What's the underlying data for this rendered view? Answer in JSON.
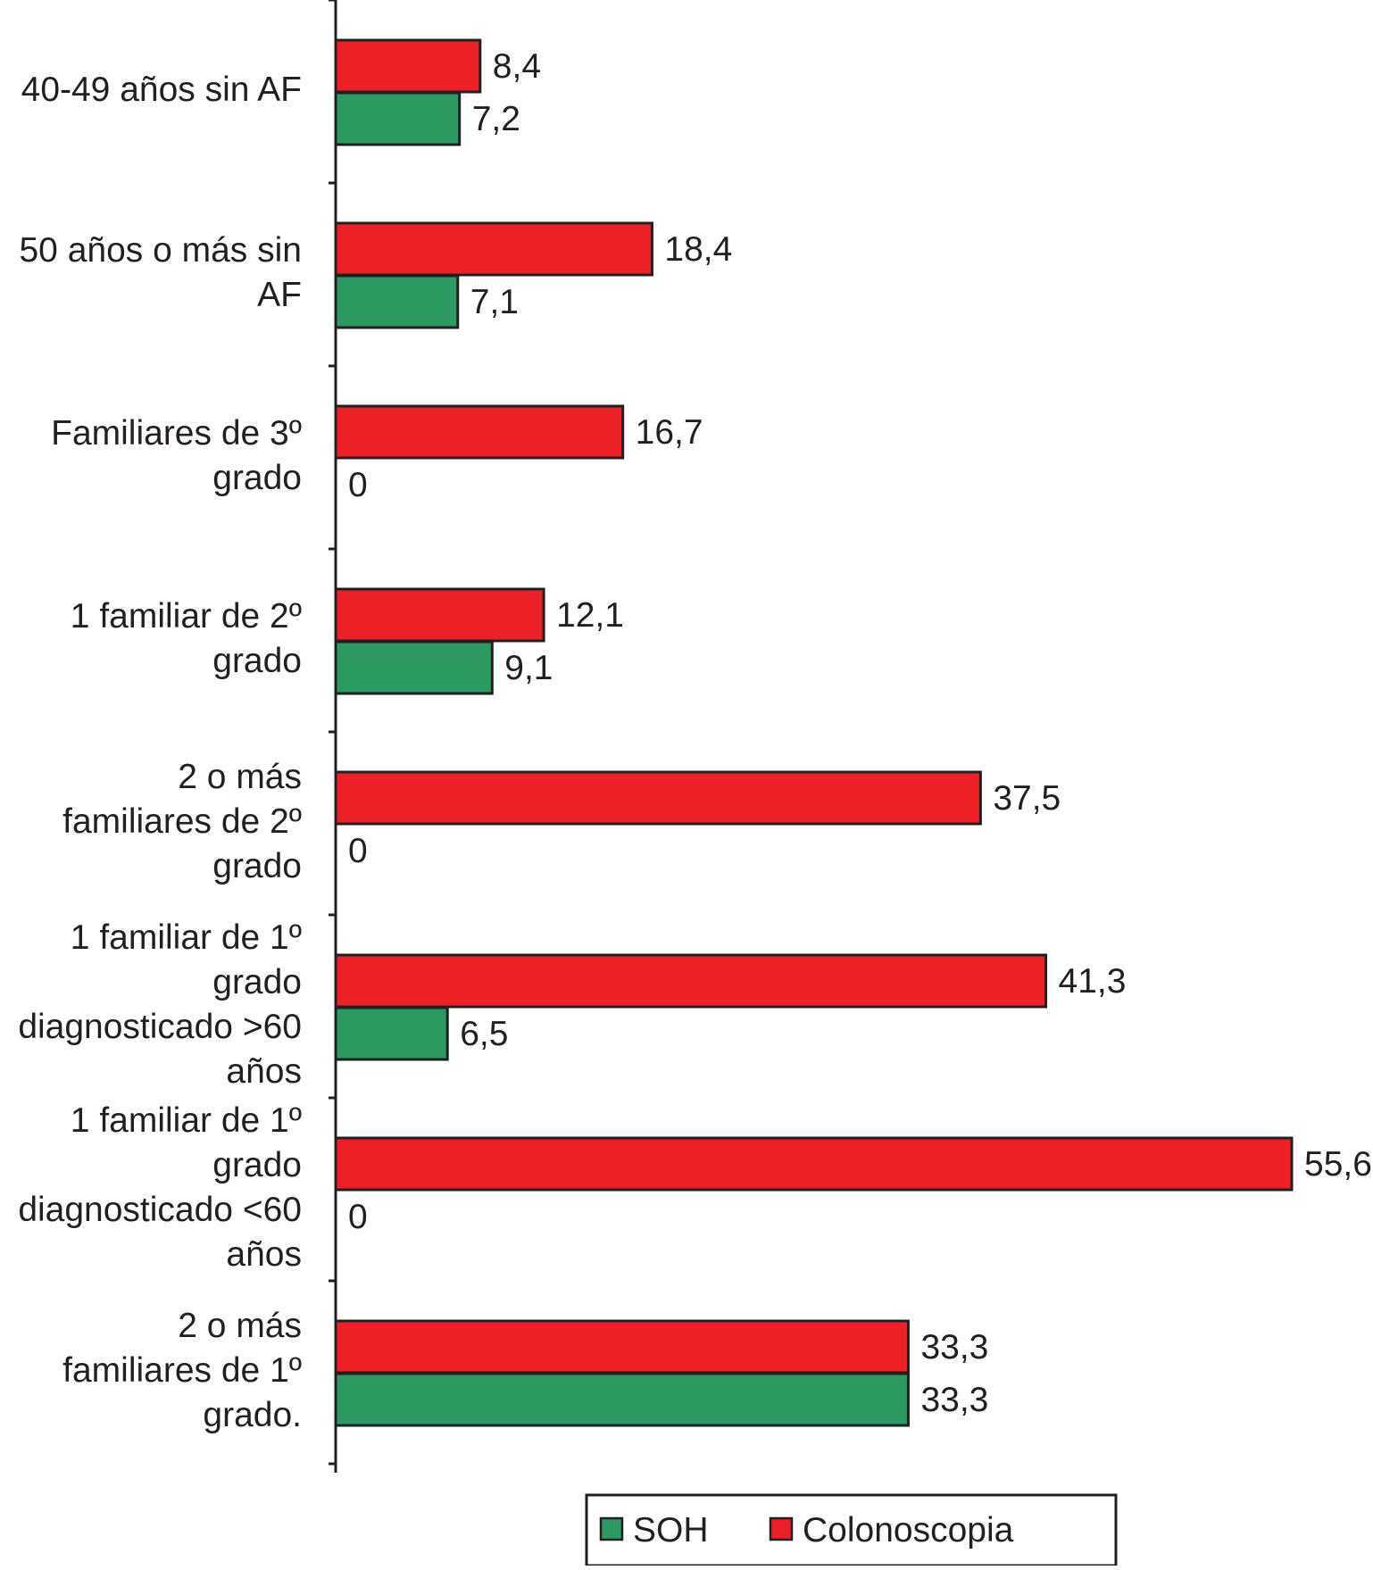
{
  "chart_data": {
    "type": "bar",
    "orientation": "horizontal",
    "title": "",
    "xlabel": "",
    "ylabel": "",
    "categories": [
      [
        "40-49 años sin AF"
      ],
      [
        "50 años o más sin",
        "AF"
      ],
      [
        "Familiares de 3º",
        "grado"
      ],
      [
        "1 familiar de 2º",
        "grado"
      ],
      [
        "2 o más",
        "familiares de 2º",
        "grado"
      ],
      [
        "1 familiar de 1º",
        "grado",
        "diagnosticado >60",
        "años"
      ],
      [
        "1 familiar de 1º",
        "grado",
        "diagnosticado <60",
        "años"
      ],
      [
        "2 o más",
        "familiares de 1º",
        "grado."
      ]
    ],
    "series": [
      {
        "name": "Colonoscopia",
        "color": "#ec2027",
        "values": [
          8.4,
          18.4,
          16.7,
          12.1,
          37.5,
          41.3,
          55.6,
          33.3
        ],
        "labels": [
          "8,4",
          "18,4",
          "16,7",
          "12,1",
          "37,5",
          "41,3",
          "55,6",
          "33,3"
        ]
      },
      {
        "name": "SOH",
        "color": "#2e9a63",
        "values": [
          7.2,
          7.1,
          0,
          9.1,
          0,
          6.5,
          0,
          33.3
        ],
        "labels": [
          "7,2",
          "7,1",
          "0",
          "9,1",
          "0",
          "6,5",
          "0",
          "33,3"
        ]
      }
    ],
    "xlim": [
      0,
      55.6
    ],
    "grid": false,
    "x_axis_visible": false,
    "legend": {
      "position": "bottom-center",
      "entries": [
        {
          "name": "SOH",
          "color": "#2e9a63"
        },
        {
          "name": "Colonoscopia",
          "color": "#ec2027"
        }
      ]
    }
  }
}
